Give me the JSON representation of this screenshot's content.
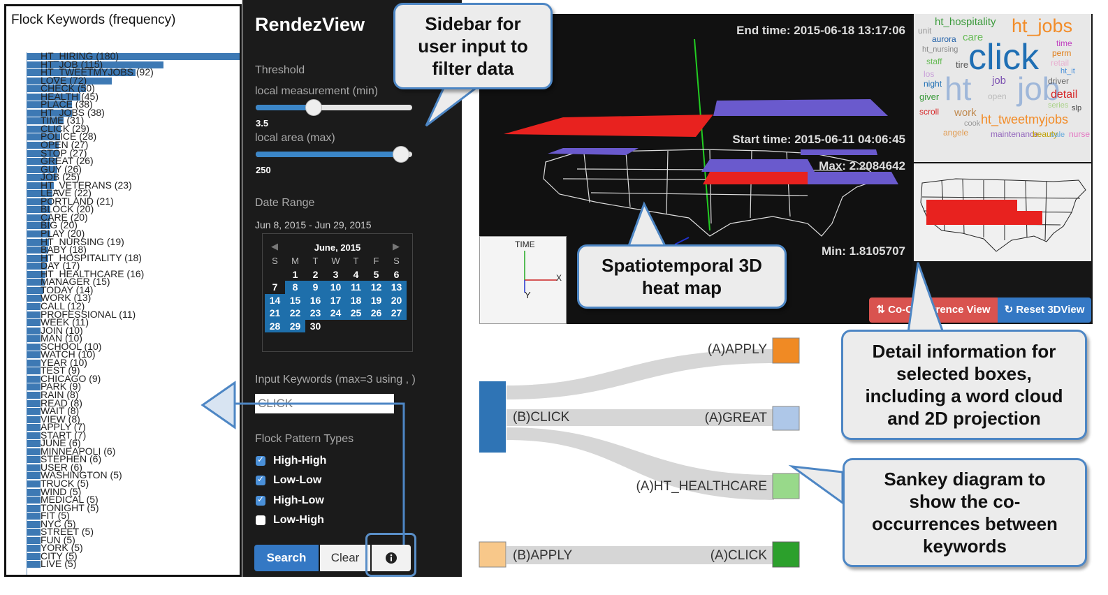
{
  "keywords": {
    "title": "Flock Keywords (frequency)",
    "items": [
      {
        "label": "HT_HIRING (180)",
        "freq": 180
      },
      {
        "label": "HT_JOB (115)",
        "freq": 115
      },
      {
        "label": "HT_TWEETMYJOBS (92)",
        "freq": 92
      },
      {
        "label": "LOVE (72)",
        "freq": 72
      },
      {
        "label": "CHECK (50)",
        "freq": 50
      },
      {
        "label": "HEALTH (45)",
        "freq": 45
      },
      {
        "label": "PLACE (38)",
        "freq": 38
      },
      {
        "label": "HT_JOBS (38)",
        "freq": 38
      },
      {
        "label": "TIME (31)",
        "freq": 31
      },
      {
        "label": "CLICK (29)",
        "freq": 29
      },
      {
        "label": "POLICE (28)",
        "freq": 28
      },
      {
        "label": "OPEN (27)",
        "freq": 27
      },
      {
        "label": "STOP (27)",
        "freq": 27
      },
      {
        "label": "GREAT (26)",
        "freq": 26
      },
      {
        "label": "GUY (26)",
        "freq": 26
      },
      {
        "label": "JOB (25)",
        "freq": 25
      },
      {
        "label": "HT_VETERANS (23)",
        "freq": 23
      },
      {
        "label": "LEAVE (22)",
        "freq": 22
      },
      {
        "label": "PORTLAND (21)",
        "freq": 21
      },
      {
        "label": "BLOCK (20)",
        "freq": 20
      },
      {
        "label": "CARE (20)",
        "freq": 20
      },
      {
        "label": "BIG (20)",
        "freq": 20
      },
      {
        "label": "PLAY (20)",
        "freq": 20
      },
      {
        "label": "HT_NURSING (19)",
        "freq": 19
      },
      {
        "label": "BABY (18)",
        "freq": 18
      },
      {
        "label": "HT_HOSPITALITY (18)",
        "freq": 18
      },
      {
        "label": "DAY (17)",
        "freq": 17
      },
      {
        "label": "HT_HEALTHCARE (16)",
        "freq": 16
      },
      {
        "label": "MANAGER (15)",
        "freq": 15
      },
      {
        "label": "TODAY (14)",
        "freq": 14
      },
      {
        "label": "WORK (13)",
        "freq": 13
      },
      {
        "label": "CALL (12)",
        "freq": 12
      },
      {
        "label": "PROFESSIONAL (11)",
        "freq": 11
      },
      {
        "label": "WEEK (11)",
        "freq": 11
      },
      {
        "label": "JOIN (10)",
        "freq": 10
      },
      {
        "label": "MAN (10)",
        "freq": 10
      },
      {
        "label": "SCHOOL (10)",
        "freq": 10
      },
      {
        "label": "WATCH (10)",
        "freq": 10
      },
      {
        "label": "YEAR (10)",
        "freq": 10
      },
      {
        "label": "TEST (9)",
        "freq": 9
      },
      {
        "label": "CHICAGO (9)",
        "freq": 9
      },
      {
        "label": "PARK (9)",
        "freq": 9
      },
      {
        "label": "RAIN (8)",
        "freq": 8
      },
      {
        "label": "READ (8)",
        "freq": 8
      },
      {
        "label": "WAIT (8)",
        "freq": 8
      },
      {
        "label": "VIEW (8)",
        "freq": 8
      },
      {
        "label": "APPLY (7)",
        "freq": 7
      },
      {
        "label": "START (7)",
        "freq": 7
      },
      {
        "label": "JUNE (6)",
        "freq": 6
      },
      {
        "label": "MINNEAPOLI (6)",
        "freq": 6
      },
      {
        "label": "STEPHEN (6)",
        "freq": 6
      },
      {
        "label": "USER (6)",
        "freq": 6
      },
      {
        "label": "WASHINGTON (5)",
        "freq": 5
      },
      {
        "label": "TRUCK (5)",
        "freq": 5
      },
      {
        "label": "WIND (5)",
        "freq": 5
      },
      {
        "label": "MEDICAL (5)",
        "freq": 5
      },
      {
        "label": "TONIGHT (5)",
        "freq": 5
      },
      {
        "label": "FIT (5)",
        "freq": 5
      },
      {
        "label": "NYC (5)",
        "freq": 5
      },
      {
        "label": "STREET (5)",
        "freq": 5
      },
      {
        "label": "FUN (5)",
        "freq": 5
      },
      {
        "label": "YORK (5)",
        "freq": 5
      },
      {
        "label": "CITY (5)",
        "freq": 5
      },
      {
        "label": "LIVE (5)",
        "freq": 5
      }
    ]
  },
  "sidebar": {
    "title": "RendezView",
    "threshold_label": "Threshold",
    "local_measurement_label": "local measurement (min)",
    "local_measurement_value": "3.5",
    "local_measurement_fraction": 0.37,
    "local_area_label": "local area (max)",
    "local_area_value": "250",
    "local_area_fraction": 0.93,
    "date_range_label": "Date Range",
    "date_range_value": "Jun 8, 2015 - Jun 29, 2015",
    "calendar": {
      "month": "June, 2015",
      "prev": "◀",
      "next": "▶",
      "weekdays": [
        "S",
        "M",
        "T",
        "W",
        "T",
        "F",
        "S"
      ],
      "weeks": [
        [
          "",
          "1",
          "2",
          "3",
          "4",
          "5",
          "6"
        ],
        [
          "7",
          "8",
          "9",
          "10",
          "11",
          "12",
          "13"
        ],
        [
          "14",
          "15",
          "16",
          "17",
          "18",
          "19",
          "20"
        ],
        [
          "21",
          "22",
          "23",
          "24",
          "25",
          "26",
          "27"
        ],
        [
          "28",
          "29",
          "30",
          "",
          "",
          "",
          ""
        ]
      ],
      "selected_from": 8,
      "selected_to": 29
    },
    "input_keywords_label": "Input Keywords (max=3 using , )",
    "input_keywords_value": "CLICK",
    "flock_types_label": "Flock Pattern Types",
    "flock_types": [
      {
        "label": "High-High",
        "checked": true
      },
      {
        "label": "Low-Low",
        "checked": true
      },
      {
        "label": "High-Low",
        "checked": true
      },
      {
        "label": "Low-High",
        "checked": false
      }
    ],
    "search_label": "Search",
    "clear_label": "Clear",
    "info_icon": "info-circle-icon"
  },
  "view3d": {
    "end_time": "End time: 2015-06-18 13:17:06",
    "start_time": "Start time: 2015-06-11 04:06:45",
    "max_label": "Max:  2.2084642",
    "min_label": "Min:  1.8105707",
    "axis_time": "TIME",
    "axis_x": "X",
    "axis_y": "Y",
    "colors": {
      "high": "#e8221f",
      "low": "#6a5acd",
      "axis_green": "#22cc22",
      "axis_blue": "#2233cc"
    }
  },
  "detail": {
    "word_cloud": [
      {
        "text": "ht_hospitality",
        "color": "#3a9a3a"
      },
      {
        "text": "unit",
        "color": "#999999"
      },
      {
        "text": "aurora",
        "color": "#1f5fa8"
      },
      {
        "text": "care",
        "color": "#66bb55"
      },
      {
        "text": "ht_jobs",
        "color": "#f28c28"
      },
      {
        "text": "ht_nursing",
        "color": "#888888"
      },
      {
        "text": "click",
        "color": "#1f6fb4"
      },
      {
        "text": "time",
        "color": "#c040c0"
      },
      {
        "text": "perm",
        "color": "#e07a10"
      },
      {
        "text": "staff",
        "color": "#66bb55"
      },
      {
        "text": "tire",
        "color": "#555555"
      },
      {
        "text": "retail",
        "color": "#e8b0d0"
      },
      {
        "text": "los",
        "color": "#c9a0d9"
      },
      {
        "text": "ht_it",
        "color": "#4a90d9"
      },
      {
        "text": "night",
        "color": "#1f6fb4"
      },
      {
        "text": "ht",
        "color": "#9fb7d9"
      },
      {
        "text": "job",
        "color": "#9fb7d9"
      },
      {
        "text": "job",
        "color": "#7a4fb0"
      },
      {
        "text": "driver",
        "color": "#666666"
      },
      {
        "text": "giver",
        "color": "#3a9a3a"
      },
      {
        "text": "open",
        "color": "#bbbbbb"
      },
      {
        "text": "detail",
        "color": "#d62728"
      },
      {
        "text": "series",
        "color": "#aad28a"
      },
      {
        "text": "slp",
        "color": "#444444"
      },
      {
        "text": "scroll",
        "color": "#d62728"
      },
      {
        "text": "work",
        "color": "#c08a50"
      },
      {
        "text": "ht_tweetmyjobs",
        "color": "#f28c28"
      },
      {
        "text": "cook",
        "color": "#999999"
      },
      {
        "text": "angele",
        "color": "#e09a50"
      },
      {
        "text": "maintenance",
        "color": "#9467bd"
      },
      {
        "text": "beauty",
        "color": "#c0a000"
      },
      {
        "text": "sale",
        "color": "#66aadd"
      },
      {
        "text": "nurse",
        "color": "#e377c2"
      }
    ],
    "co_occurrence_label": "⇅ Co-Occurrence View",
    "reset_label": "↻ Reset 3DView"
  },
  "sankey": {
    "nodes": [
      {
        "label": "(A)APPLY",
        "color": "#f08a24"
      },
      {
        "label": "(B)CLICK",
        "color": "#2f74b5"
      },
      {
        "label": "(A)GREAT",
        "color": "#aec7e8"
      },
      {
        "label": "(A)HT_HEALTHCARE",
        "color": "#98d98a"
      },
      {
        "label": "(B)APPLY",
        "color": "#f8c88a"
      },
      {
        "label": "(A)CLICK",
        "color": "#2ca02c"
      }
    ]
  },
  "callouts": {
    "sidebar": [
      "Sidebar for",
      "user input to",
      "filter data"
    ],
    "heatmap": [
      "Spatiotemporal 3D",
      "heat map"
    ],
    "detail": [
      "Detail information for",
      "selected boxes,",
      "including a word cloud",
      "and 2D projection"
    ],
    "sankey": [
      "Sankey diagram to",
      "show the co-",
      "occurrences between",
      "keywords"
    ]
  }
}
